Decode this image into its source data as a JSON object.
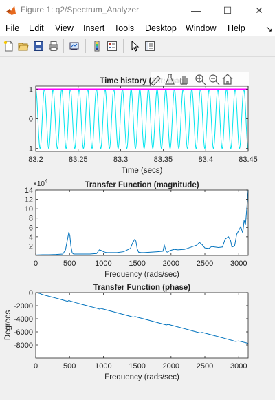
{
  "window": {
    "title": "Figure 1: q2/Spectrum_Analyzer",
    "minimize_glyph": "—",
    "maximize_glyph": "☐",
    "close_glyph": "✕"
  },
  "menu": [
    {
      "mnemonic": "F",
      "rest": "ile"
    },
    {
      "mnemonic": "E",
      "rest": "dit"
    },
    {
      "mnemonic": "V",
      "rest": "iew"
    },
    {
      "mnemonic": "I",
      "rest": "nsert"
    },
    {
      "mnemonic": "T",
      "rest": "ools"
    },
    {
      "mnemonic": "D",
      "rest": "esktop"
    },
    {
      "mnemonic": "W",
      "rest": "indow"
    },
    {
      "mnemonic": "H",
      "rest": "elp"
    }
  ],
  "menu_overflow_glyph": "↘",
  "toolbar_icons": [
    "new-figure-icon",
    "open-file-icon",
    "save-icon",
    "print-icon",
    "link-plot-icon",
    "insert-colorbar-icon",
    "insert-legend-icon",
    "pointer-icon",
    "property-inspector-icon"
  ],
  "axes_toolbar_icons": [
    "brush-icon",
    "data-tips-icon",
    "pan-icon",
    "zoom-in-icon",
    "zoom-out-icon",
    "home-icon"
  ],
  "colors": {
    "cyan": "#00e5ee",
    "magenta": "#ff00ff",
    "blue": "#0072bd"
  },
  "chart_data": [
    {
      "type": "line",
      "title": "Time history (1st: mag",
      "xlabel": "Time (secs)",
      "ylabel": "",
      "xlim": [
        83.2,
        83.45
      ],
      "ylim": [
        -1.1,
        1.1
      ],
      "x_ticks": [
        "83.2",
        "83.25",
        "83.3",
        "83.35",
        "83.4",
        "83.45"
      ],
      "y_ticks": [
        "1",
        "0",
        "-1"
      ],
      "series": [
        {
          "color": "cyan",
          "kind": "sine",
          "amplitude": 1.0,
          "cycles_in_window": 24.5
        },
        {
          "color": "magenta",
          "kind": "constant",
          "value": 1.0
        }
      ]
    },
    {
      "type": "line",
      "title": "Transfer Function (magnitude)",
      "xlabel": "Frequency (rads/sec)",
      "ylabel": "",
      "exponent_label": "×10",
      "exponent_power": "4",
      "xlim": [
        0,
        3140
      ],
      "ylim": [
        0,
        14
      ],
      "x_ticks": [
        "0",
        "500",
        "1000",
        "1500",
        "2000",
        "2500",
        "3000"
      ],
      "y_ticks": [
        "2",
        "4",
        "6",
        "8",
        "10",
        "12",
        "14"
      ],
      "series": [
        {
          "color": "blue",
          "x": [
            0,
            100,
            200,
            300,
            400,
            440,
            470,
            490,
            505,
            520,
            540,
            560,
            600,
            700,
            800,
            900,
            940,
            980,
            1000,
            1050,
            1100,
            1200,
            1300,
            1400,
            1430,
            1460,
            1480,
            1500,
            1520,
            1560,
            1600,
            1700,
            1800,
            1880,
            1900,
            1930,
            1950,
            1980,
            2000,
            2050,
            2100,
            2200,
            2300,
            2380,
            2420,
            2460,
            2500,
            2560,
            2600,
            2700,
            2760,
            2800,
            2850,
            2880,
            2900,
            2940,
            2970,
            3000,
            3030,
            3060,
            3080,
            3100,
            3120,
            3140
          ],
          "y": [
            0.1,
            0.15,
            0.15,
            0.2,
            0.3,
            1.2,
            3.5,
            5.0,
            4.2,
            2.0,
            0.5,
            0.3,
            0.3,
            0.3,
            0.3,
            0.4,
            1.2,
            1.0,
            0.8,
            0.6,
            0.6,
            0.6,
            0.8,
            1.5,
            2.6,
            3.4,
            3.1,
            1.4,
            0.7,
            0.6,
            0.6,
            0.7,
            0.8,
            0.9,
            2.2,
            0.8,
            0.7,
            1.0,
            1.1,
            1.3,
            1.2,
            1.3,
            1.8,
            2.2,
            2.8,
            2.3,
            1.6,
            1.5,
            1.9,
            1.7,
            1.8,
            3.5,
            4.0,
            3.2,
            1.8,
            2.0,
            4.5,
            5.3,
            6.2,
            4.8,
            7.5,
            6.5,
            10.0,
            14.0
          ]
        }
      ]
    },
    {
      "type": "line",
      "title": "Transfer Function (phase)",
      "xlabel": "Frequency (rads/sec)",
      "ylabel": "Degrees",
      "xlim": [
        0,
        3140
      ],
      "ylim": [
        -10000,
        0
      ],
      "x_ticks": [
        "0",
        "500",
        "1000",
        "1500",
        "2000",
        "2500",
        "3000"
      ],
      "y_ticks": [
        "0",
        "-2000",
        "-4000",
        "-6000",
        "-8000"
      ],
      "series": [
        {
          "color": "blue",
          "x": [
            0,
            50,
            100,
            200,
            300,
            400,
            470,
            490,
            510,
            600,
            700,
            800,
            900,
            940,
            960,
            1000,
            1100,
            1200,
            1300,
            1400,
            1440,
            1470,
            1500,
            1600,
            1700,
            1800,
            1900,
            1930,
            1960,
            2000,
            2100,
            2200,
            2300,
            2400,
            2430,
            2460,
            2500,
            2600,
            2700,
            2800,
            2900,
            2950,
            3000,
            3050,
            3100,
            3140
          ],
          "y": [
            0,
            -100,
            -300,
            -580,
            -850,
            -1130,
            -1340,
            -1190,
            -1290,
            -1560,
            -1840,
            -2120,
            -2390,
            -2520,
            -2420,
            -2530,
            -2800,
            -3080,
            -3360,
            -3630,
            -3760,
            -3660,
            -3760,
            -4030,
            -4300,
            -4580,
            -4860,
            -4950,
            -4860,
            -4970,
            -5250,
            -5520,
            -5800,
            -6080,
            -6160,
            -6080,
            -6180,
            -6460,
            -6740,
            -7020,
            -7300,
            -7460,
            -7400,
            -7520,
            -7640,
            -7750
          ]
        }
      ]
    }
  ]
}
